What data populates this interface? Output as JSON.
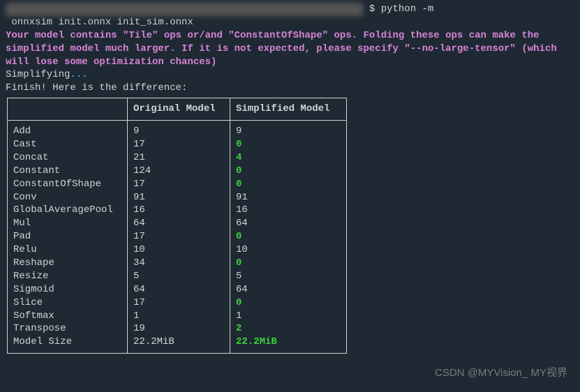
{
  "prompt": {
    "blurred_left": "(xxxx) xxxx@xxxxxxxxx:/xxx/xxxx/xxxxxxxx/xxxxxxxxxxxxxx/xxxx$",
    "dollar_cmd": "$ python -m",
    "cmd_line2": " onnxsim init.onnx init_sim.onnx"
  },
  "warning_text": "Your model contains \"Tile\" ops or/and \"ConstantOfShape\" ops. Folding these ops can make the simplified model much larger. If it is not expected, please specify \"--no-large-tensor\" (which will lose some optimization chances)",
  "simplifying_text": "Simplifying",
  "dots": "...",
  "finish_text": "Finish! Here is the difference:",
  "table": {
    "headers": {
      "col1": "",
      "col2": "Original Model",
      "col3": "Simplified Model"
    },
    "rows": [
      {
        "op": "Add",
        "orig": "9",
        "simp": "9",
        "changed": false
      },
      {
        "op": "Cast",
        "orig": "17",
        "simp": "0",
        "changed": true
      },
      {
        "op": "Concat",
        "orig": "21",
        "simp": "4",
        "changed": true
      },
      {
        "op": "Constant",
        "orig": "124",
        "simp": "0",
        "changed": true
      },
      {
        "op": "ConstantOfShape",
        "orig": "17",
        "simp": "0",
        "changed": true
      },
      {
        "op": "Conv",
        "orig": "91",
        "simp": "91",
        "changed": false
      },
      {
        "op": "GlobalAveragePool",
        "orig": "16",
        "simp": "16",
        "changed": false
      },
      {
        "op": "Mul",
        "orig": "64",
        "simp": "64",
        "changed": false
      },
      {
        "op": "Pad",
        "orig": "17",
        "simp": "0",
        "changed": true
      },
      {
        "op": "Relu",
        "orig": "10",
        "simp": "10",
        "changed": false
      },
      {
        "op": "Reshape",
        "orig": "34",
        "simp": "0",
        "changed": true
      },
      {
        "op": "Resize",
        "orig": "5",
        "simp": "5",
        "changed": false
      },
      {
        "op": "Sigmoid",
        "orig": "64",
        "simp": "64",
        "changed": false
      },
      {
        "op": "Slice",
        "orig": "17",
        "simp": "0",
        "changed": true
      },
      {
        "op": "Softmax",
        "orig": "1",
        "simp": "1",
        "changed": false
      },
      {
        "op": "Transpose",
        "orig": "19",
        "simp": "2",
        "changed": true
      },
      {
        "op": "Model Size",
        "orig": "22.2MiB",
        "simp": "22.2MiB",
        "changed": true
      }
    ]
  },
  "watermark": "CSDN @MYVision_ MY视界"
}
